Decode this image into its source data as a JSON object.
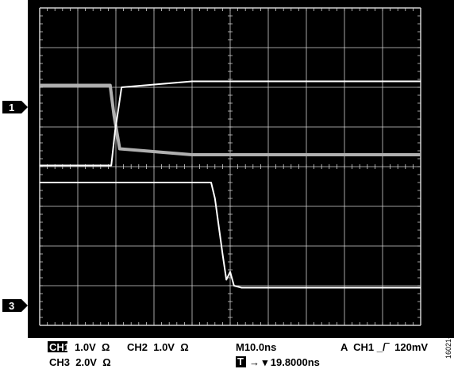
{
  "chart_data": {
    "type": "line",
    "title": "",
    "xlabel": "",
    "ylabel": "",
    "grid": true,
    "x_unit": "ns",
    "x_range": [
      0,
      100
    ],
    "y_range_div": [
      0,
      8
    ],
    "channel_markers": [
      {
        "label": "1",
        "level_div": 5.5
      },
      {
        "label": "3",
        "level_div": 0.5
      }
    ],
    "series": [
      {
        "color": "#b0b0b0",
        "x": [
          0,
          18.5,
          19.5,
          21,
          40,
          100
        ],
        "y": [
          6.05,
          6.05,
          5.3,
          4.45,
          4.3,
          4.3
        ]
      },
      {
        "color": "#ffffff",
        "x": [
          0,
          18.8,
          19.8,
          21.5,
          40,
          100
        ],
        "y": [
          4.03,
          4.03,
          4.9,
          6.0,
          6.15,
          6.15
        ]
      },
      {
        "color": "#ffffff",
        "x": [
          0,
          45,
          46,
          48,
          49,
          50,
          51,
          53,
          100
        ],
        "y": [
          3.6,
          3.6,
          3.2,
          1.8,
          1.15,
          1.35,
          1.0,
          0.95,
          0.95
        ]
      }
    ]
  },
  "readout": {
    "ch1_badge": "CH1",
    "ch1_setting": "1.0V  Ω",
    "ch2_setting": "CH2  1.0V  Ω",
    "ch3_setting": "CH3  2.0V  Ω",
    "timebase": "M10.0ns",
    "trigger": "A  CH1 _/‾  120mV",
    "trigger_badge": "T",
    "trigger_position": "→ ▾ 19.8000ns"
  },
  "figure_id": "16021-022"
}
